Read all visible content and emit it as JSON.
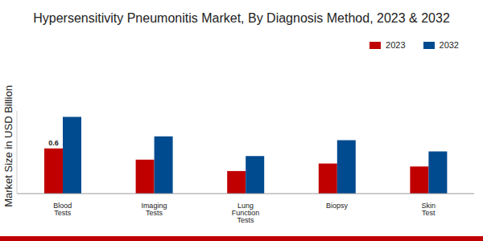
{
  "chart_data": {
    "type": "bar",
    "title": "Hypersensitivity Pneumonitis Market, By Diagnosis Method, 2023 & 2032",
    "y_label": "Market Size in USD Billion",
    "categories": [
      "Blood Tests",
      "Imaging Tests",
      "Lung Function Tests",
      "Biopsy",
      "Skin Test"
    ],
    "series": [
      {
        "name": "2023",
        "color": "#c00000",
        "values": [
          0.6,
          0.45,
          0.3,
          0.4,
          0.36
        ],
        "value_labels": [
          "0.6",
          null,
          null,
          null,
          null
        ]
      },
      {
        "name": "2032",
        "color": "#004a8f",
        "values": [
          1.02,
          0.76,
          0.5,
          0.71,
          0.56
        ]
      }
    ],
    "ylim": [
      0,
      1.1
    ],
    "yticks": [],
    "tick_labels": "x",
    "grid": false,
    "legend": "top-right"
  }
}
